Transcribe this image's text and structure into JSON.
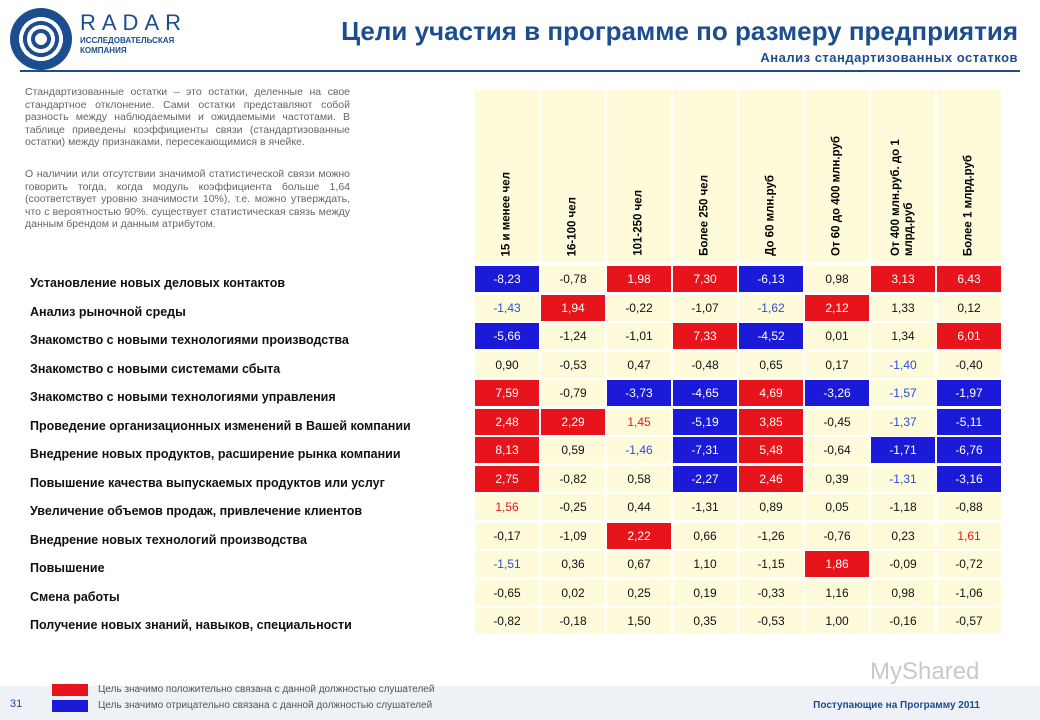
{
  "logo": {
    "name": "RADAR",
    "subtitle": "ИССЛЕДОВАТЕЛЬСКАЯ КОМПАНИЯ"
  },
  "header": {
    "title": "Цели участия в программе по размеру предприятия",
    "subtitle": "Анализ стандартизованных остатков"
  },
  "notes": [
    "Стандартизованные остатки – это остатки, деленные на свое стандартное отклонение. Сами остатки представляют собой разность между наблюдаемыми и ожидаемыми частотами. В таблице приведены коэффициенты связи (стандартизованные остатки) между признаками, пересекающимися в ячейке.",
    "О наличии или отсутствии значимой статистической связи можно говорить тогда, когда модуль коэффициента больше 1,64 (соответствует уровню значимости 10%), т.е. можно утверждать, что с вероятностью 90%. существует статистическая связь между данным брендом и данным атрибутом."
  ],
  "table": {
    "columns": [
      "15 и менее чел",
      "16-100 чел",
      "101-250 чел",
      "Более 250 чел",
      "До 60 млн.руб",
      "От 60 до 400 млн.руб",
      "От 400 млн.руб. до 1 млрд.руб",
      "Более 1 млрд.руб"
    ],
    "styles": {
      "R": {
        "bg": "#e8141b",
        "fg": "#ffffff"
      },
      "B": {
        "bg": "#1a1ad8",
        "fg": "#ffffff"
      },
      "r": {
        "bg": "#fdfbd9",
        "fg": "#e8141b"
      },
      "b": {
        "bg": "#fdfbd9",
        "fg": "#2a4fd8"
      },
      "n": {
        "bg": "#fdfbd9",
        "fg": "#111111"
      }
    },
    "rows": [
      {
        "label": "Установление новых деловых контактов",
        "cells": [
          "-8,23",
          "-0,78",
          "1,98",
          "7,30",
          "-6,13",
          "0,98",
          "3,13",
          "6,43"
        ],
        "style": [
          "B",
          "n",
          "R",
          "R",
          "B",
          "n",
          "R",
          "R"
        ]
      },
      {
        "label": "Анализ рыночной среды",
        "cells": [
          "-1,43",
          "1,94",
          "-0,22",
          "-1,07",
          "-1,62",
          "2,12",
          "1,33",
          "0,12"
        ],
        "style": [
          "b",
          "R",
          "n",
          "n",
          "b",
          "R",
          "n",
          "n"
        ]
      },
      {
        "label": "Знакомство с новыми технологиями производства",
        "cells": [
          "-5,66",
          "-1,24",
          "-1,01",
          "7,33",
          "-4,52",
          "0,01",
          "1,34",
          "6,01"
        ],
        "style": [
          "B",
          "n",
          "n",
          "R",
          "B",
          "n",
          "n",
          "R"
        ]
      },
      {
        "label": "Знакомство с новыми системами сбыта",
        "cells": [
          "0,90",
          "-0,53",
          "0,47",
          "-0,48",
          "0,65",
          "0,17",
          "-1,40",
          "-0,40"
        ],
        "style": [
          "n",
          "n",
          "n",
          "n",
          "n",
          "n",
          "b",
          "n"
        ]
      },
      {
        "label": "Знакомство с новыми технологиями управления",
        "cells": [
          "7,59",
          "-0,79",
          "-3,73",
          "-4,65",
          "4,69",
          "-3,26",
          "-1,57",
          "-1,97"
        ],
        "style": [
          "R",
          "n",
          "B",
          "B",
          "R",
          "B",
          "b",
          "B"
        ]
      },
      {
        "label": "Проведение организационных изменений в Вашей компании",
        "cells": [
          "2,48",
          "2,29",
          "1,45",
          "-5,19",
          "3,85",
          "-0,45",
          "-1,37",
          "-5,11"
        ],
        "style": [
          "R",
          "R",
          "r",
          "B",
          "R",
          "n",
          "b",
          "B"
        ]
      },
      {
        "label": "Внедрение новых продуктов, расширение рынка компании",
        "cells": [
          "8,13",
          "0,59",
          "-1,46",
          "-7,31",
          "5,48",
          "-0,64",
          "-1,71",
          "-6,76"
        ],
        "style": [
          "R",
          "n",
          "b",
          "B",
          "R",
          "n",
          "B",
          "B"
        ]
      },
      {
        "label": "Повышение качества выпускаемых продуктов или услуг",
        "cells": [
          "2,75",
          "-0,82",
          "0,58",
          "-2,27",
          "2,46",
          "0,39",
          "-1,31",
          "-3,16"
        ],
        "style": [
          "R",
          "n",
          "n",
          "B",
          "R",
          "n",
          "b",
          "B"
        ]
      },
      {
        "label": "Увеличение объемов продаж, привлечение клиентов",
        "cells": [
          "1,56",
          "-0,25",
          "0,44",
          "-1,31",
          "0,89",
          "0,05",
          "-1,18",
          "-0,88"
        ],
        "style": [
          "r",
          "n",
          "n",
          "n",
          "n",
          "n",
          "n",
          "n"
        ]
      },
      {
        "label": "Внедрение новых технологий производства",
        "cells": [
          "-0,17",
          "-1,09",
          "2,22",
          "0,66",
          "-1,26",
          "-0,76",
          "0,23",
          "1,61"
        ],
        "style": [
          "n",
          "n",
          "R",
          "n",
          "n",
          "n",
          "n",
          "r"
        ]
      },
      {
        "label": "Повышение",
        "cells": [
          "-1,51",
          "0,36",
          "0,67",
          "1,10",
          "-1,15",
          "1,86",
          "-0,09",
          "-0,72"
        ],
        "style": [
          "b",
          "n",
          "n",
          "n",
          "n",
          "R",
          "n",
          "n"
        ]
      },
      {
        "label": "Смена работы",
        "cells": [
          "-0,65",
          "0,02",
          "0,25",
          "0,19",
          "-0,33",
          "1,16",
          "0,98",
          "-1,06"
        ],
        "style": [
          "n",
          "n",
          "n",
          "n",
          "n",
          "n",
          "n",
          "n"
        ]
      },
      {
        "label": "Получение новых знаний, навыков, специальности",
        "cells": [
          "-0,82",
          "-0,18",
          "1,50",
          "0,35",
          "-0,53",
          "1,00",
          "-0,16",
          "-0,57"
        ],
        "style": [
          "n",
          "n",
          "n",
          "n",
          "n",
          "n",
          "n",
          "n"
        ]
      }
    ]
  },
  "legend": [
    {
      "color": "#e8141b",
      "text": "Цель значимо положительно связана с данной должностью слушателей"
    },
    {
      "color": "#1a1ad8",
      "text": "Цель значимо отрицательно связана с данной должностью слушателей"
    }
  ],
  "footer": {
    "page": "31",
    "text": "Поступающие на Программу 2011",
    "watermark": "MyShared"
  }
}
